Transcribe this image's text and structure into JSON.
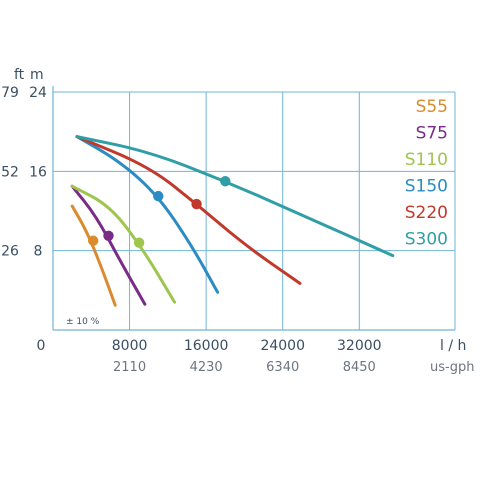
{
  "chart_data": {
    "type": "line",
    "title": "",
    "xlabel": "l / h",
    "xlabel_secondary": "us-gph",
    "ylabel_left_ft": "ft",
    "ylabel_right_m": "m",
    "xlim": [
      0,
      42000
    ],
    "ylim": [
      0,
      24
    ],
    "x_ticks": [
      "0",
      "8000",
      "16000",
      "24000",
      "32000"
    ],
    "x_ticks_secondary": [
      "2110",
      "4230",
      "6340",
      "8450"
    ],
    "y_ticks_m": [
      "24",
      "16",
      "8"
    ],
    "y_ticks_ft": [
      "79",
      "52",
      "26"
    ],
    "tolerance_note": "± 10 %",
    "grid": true,
    "legend_position": "right",
    "series": [
      {
        "name": "S55",
        "color": "#d98b2e",
        "x": [
          2000,
          3500,
          5000,
          6500
        ],
        "y": [
          12.5,
          10.0,
          6.5,
          2.5
        ],
        "marker": [
          4200,
          9.0
        ]
      },
      {
        "name": "S75",
        "color": "#7a2b88",
        "x": [
          2000,
          4500,
          7000,
          9600
        ],
        "y": [
          14.5,
          11.5,
          7.0,
          2.6
        ],
        "marker": [
          5800,
          9.5
        ]
      },
      {
        "name": "S110",
        "color": "#9ec54e",
        "x": [
          2000,
          6000,
          9500,
          12700
        ],
        "y": [
          14.5,
          12.5,
          8.0,
          2.8
        ],
        "marker": [
          9000,
          8.8
        ]
      },
      {
        "name": "S150",
        "color": "#2a8cc3",
        "x": [
          2500,
          7000,
          11000,
          14500,
          17200
        ],
        "y": [
          19.5,
          17.0,
          13.5,
          8.5,
          3.8
        ],
        "marker": [
          11000,
          13.5
        ]
      },
      {
        "name": "S220",
        "color": "#c0392b",
        "x": [
          2500,
          10000,
          15000,
          20000,
          25800
        ],
        "y": [
          19.5,
          16.5,
          12.7,
          8.6,
          4.7
        ],
        "marker": [
          15000,
          12.7
        ]
      },
      {
        "name": "S300",
        "color": "#2f9ea6",
        "x": [
          2500,
          10000,
          18000,
          26000,
          35500
        ],
        "y": [
          19.5,
          18.0,
          15.0,
          11.6,
          7.5
        ],
        "marker": [
          18000,
          15.0
        ]
      }
    ]
  }
}
